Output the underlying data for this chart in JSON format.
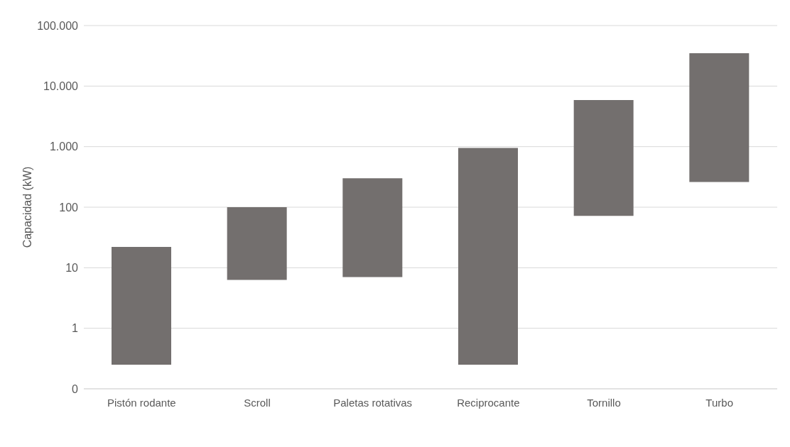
{
  "chart_data": {
    "type": "bar",
    "ylabel": "Capacidad  (kW)",
    "categories": [
      "Pistón rodante",
      "Scroll",
      "Paletas rotativas",
      "Reciprocante",
      "Tornillo",
      "Turbo"
    ],
    "base": [
      0.25,
      6.3,
      7,
      0.25,
      72,
      260
    ],
    "values": [
      21.75,
      93.7,
      293,
      949.75,
      5828,
      34740
    ],
    "color": "#736f6e",
    "log": true,
    "ylim": [
      0.1,
      100000
    ],
    "yticks": [
      {
        "value": 0.1,
        "label": "0"
      },
      1,
      10,
      100,
      {
        "value": 1000,
        "label": "1.000"
      },
      {
        "value": 10000,
        "label": "10.000"
      },
      {
        "value": 100000,
        "label": "100.000"
      }
    ],
    "grid": "y"
  }
}
